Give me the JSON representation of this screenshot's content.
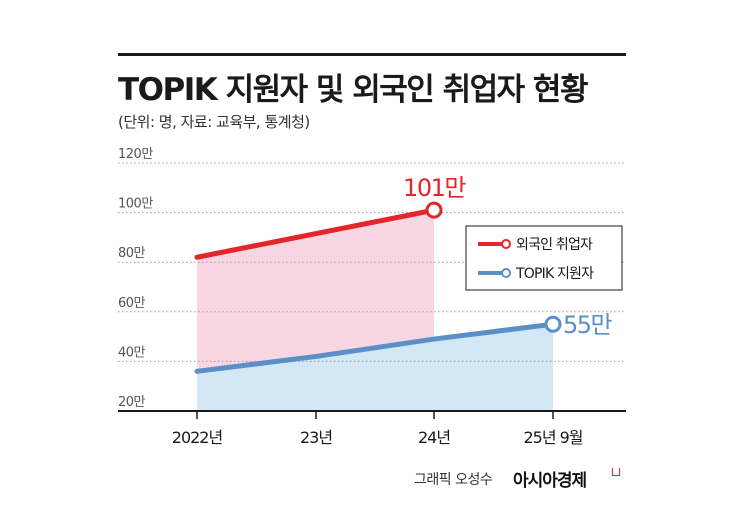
{
  "header": {
    "title": "TOPIK 지원자 및 외국인 취업자 현황",
    "subtitle": "(단위: 명, 자료: 교육부, 통계청)"
  },
  "footer": {
    "credit": "그래픽 오성수",
    "brand": "아시아경제"
  },
  "chart_data": {
    "type": "line",
    "categories": [
      "2022년",
      "23년",
      "24년",
      "25년 9월"
    ],
    "y_unit": "만",
    "ylim": [
      20,
      120
    ],
    "y_ticks": [
      20,
      40,
      60,
      80,
      100,
      120
    ],
    "y_tick_labels": [
      "20만",
      "40만",
      "60만",
      "80만",
      "100만",
      "120만"
    ],
    "grid": "dotted horizontal",
    "legend_position": "right",
    "series": [
      {
        "name": "외국인 취업자",
        "color": "#e3262a",
        "fill": "#f8d6e2",
        "values": [
          82,
          null,
          101,
          null
        ],
        "end_label": "101만"
      },
      {
        "name": "TOPIK 지원자",
        "color": "#5b8fc7",
        "fill": "#d3e7f5",
        "values": [
          36,
          42,
          49,
          55
        ],
        "end_label": "55만"
      }
    ]
  }
}
